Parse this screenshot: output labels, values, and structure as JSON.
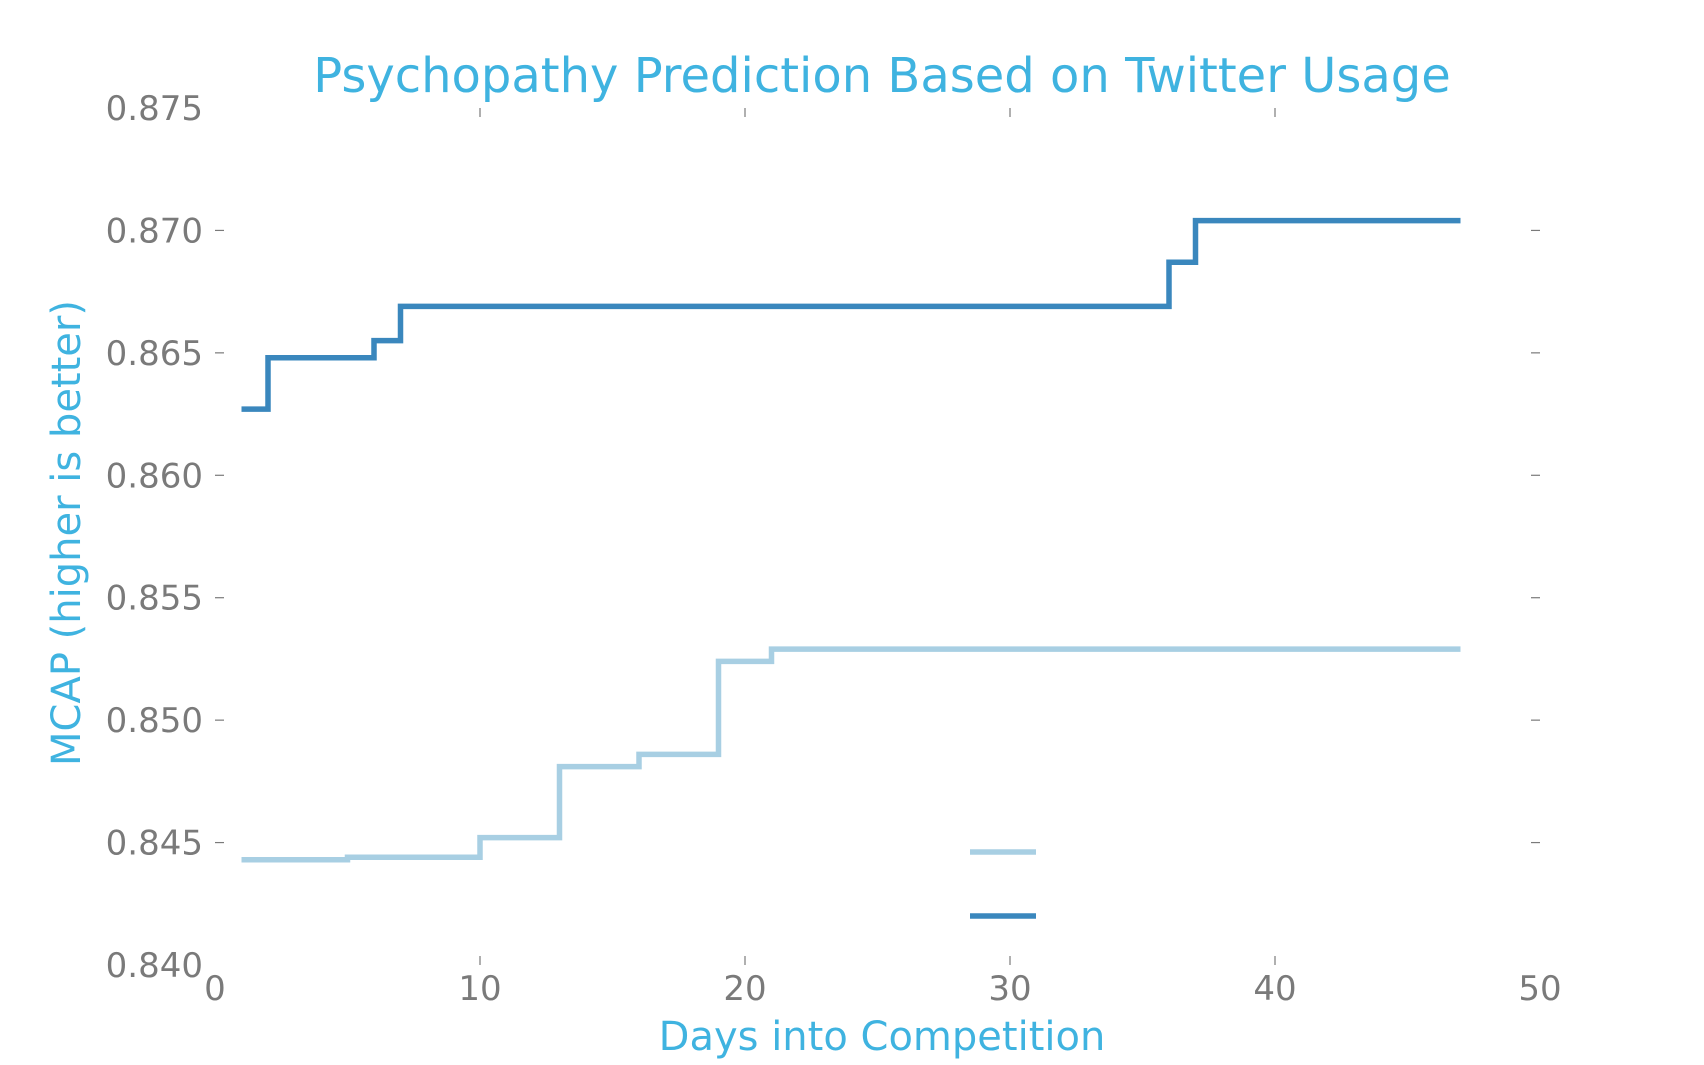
{
  "chart_data": {
    "type": "line",
    "step": true,
    "title": "Psychopathy Prediction Based on Twitter Usage",
    "xlabel": "Days into Competition",
    "ylabel": "MCAP (higher is better)",
    "xlim": [
      0,
      50
    ],
    "ylim": [
      0.84,
      0.875
    ],
    "xticks": [
      0,
      10,
      20,
      30,
      40,
      50
    ],
    "xtick_labels": [
      "0",
      "10",
      "20",
      "30",
      "40",
      "50"
    ],
    "yticks": [
      0.84,
      0.845,
      0.85,
      0.855,
      0.86,
      0.865,
      0.87,
      0.875
    ],
    "ytick_labels": [
      "0.840",
      "0.845",
      "0.850",
      "0.855",
      "0.860",
      "0.865",
      "0.870",
      "0.875"
    ],
    "grid": false,
    "legend_position": "lower-right",
    "series": [
      {
        "color": "#a8cfe3",
        "x": [
          1,
          5,
          10,
          13,
          16,
          19,
          21,
          47
        ],
        "y": [
          0.8443,
          0.8444,
          0.8452,
          0.8481,
          0.8486,
          0.8524,
          0.8529,
          0.8529
        ]
      },
      {
        "color": "#3a87bd",
        "x": [
          1,
          2,
          6,
          7,
          36,
          37,
          47
        ],
        "y": [
          0.8627,
          0.8648,
          0.8655,
          0.8669,
          0.8687,
          0.8704,
          0.8704
        ]
      }
    ]
  }
}
